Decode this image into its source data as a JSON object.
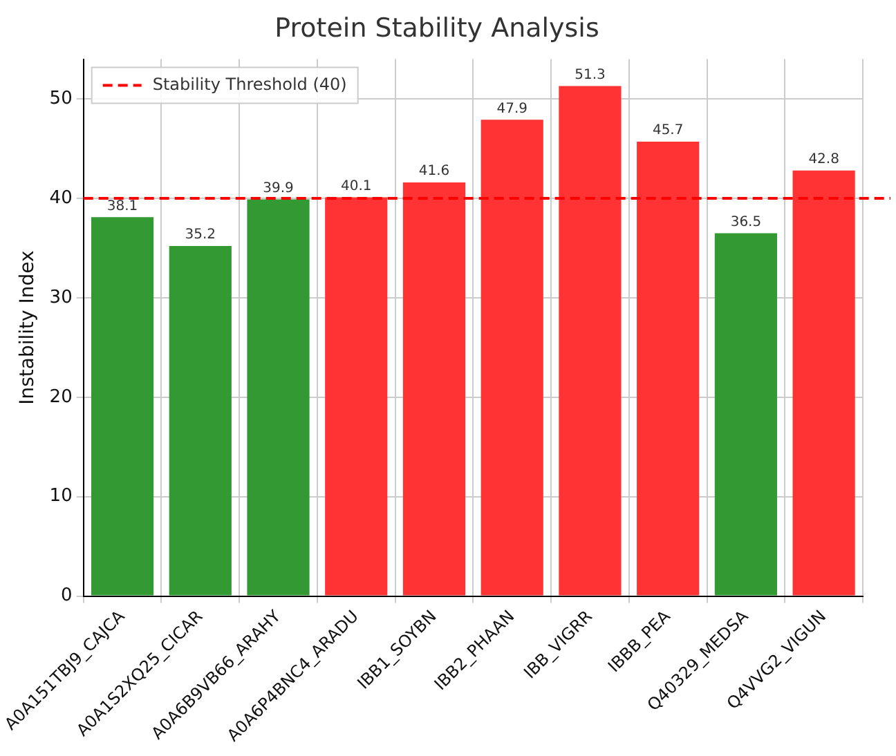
{
  "chart_data": {
    "type": "bar",
    "title": "Protein Stability Analysis",
    "ylabel": "Instability Index",
    "categories": [
      "A0A151TBJ9_CAJCA",
      "A0A1S2XQ25_CICAR",
      "A0A6B9VB66_ARAHY",
      "A0A6P4BNC4_ARADU",
      "IBB1_SOYBN",
      "IBB2_PHAAN",
      "IBB_VIGRR",
      "IBBB_PEA",
      "Q40329_MEDSA",
      "Q4VVG2_VIGUN"
    ],
    "values": [
      38.1,
      35.2,
      39.9,
      40.1,
      41.6,
      47.9,
      51.3,
      45.7,
      36.5,
      42.8
    ],
    "colors": [
      "#339933",
      "#339933",
      "#339933",
      "#ff3333",
      "#ff3333",
      "#ff3333",
      "#ff3333",
      "#ff3333",
      "#339933",
      "#ff3333"
    ],
    "ylim": [
      0,
      54
    ],
    "yticks": [
      0,
      10,
      20,
      30,
      40,
      50
    ],
    "grid": true,
    "data_labels": true,
    "legend": "top left",
    "ref_lines": [
      {
        "axis": "y",
        "value": 40,
        "label": "Stability Threshold (40)",
        "color": "#ff0000",
        "line_style": "dashed"
      }
    ]
  }
}
